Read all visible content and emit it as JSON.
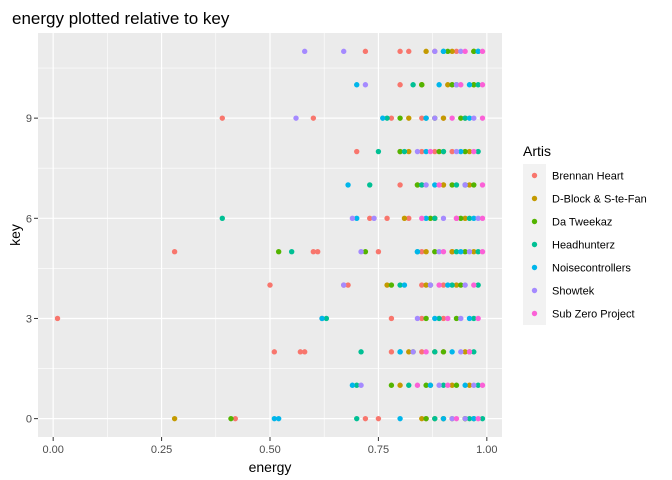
{
  "chart_data": {
    "type": "scatter",
    "title": "energy plotted relative to key",
    "xlabel": "energy",
    "ylabel": "key",
    "xlim": [
      -0.035,
      1.035
    ],
    "ylim": [
      -0.55,
      11.55
    ],
    "x_ticks": [
      0,
      0.25,
      0.5,
      0.75,
      1
    ],
    "x_tick_labels": [
      "0.00",
      "0.25",
      "0.50",
      "0.75",
      "1.00"
    ],
    "y_ticks": [
      0,
      3,
      6,
      9
    ],
    "y_tick_labels": [
      "0",
      "3",
      "6",
      "9"
    ],
    "grid": true,
    "legend_title": "Artis",
    "legend_position": "right",
    "background": "#ebebeb",
    "series": [
      {
        "name": "Brennan Heart",
        "color": "#F8766D",
        "points": [
          [
            0.42,
            0
          ],
          [
            0.72,
            0
          ],
          [
            0.75,
            0
          ],
          [
            0.86,
            0
          ],
          [
            0.9,
            0
          ],
          [
            0.51,
            2
          ],
          [
            0.57,
            2
          ],
          [
            0.58,
            2
          ],
          [
            0.78,
            2
          ],
          [
            0.85,
            2
          ],
          [
            0.9,
            2
          ],
          [
            0.01,
            3
          ],
          [
            0.62,
            3
          ],
          [
            0.78,
            3
          ],
          [
            0.85,
            3
          ],
          [
            0.9,
            3
          ],
          [
            0.5,
            4
          ],
          [
            0.67,
            4
          ],
          [
            0.68,
            4
          ],
          [
            0.85,
            4
          ],
          [
            0.9,
            4
          ],
          [
            0.28,
            5
          ],
          [
            0.6,
            5
          ],
          [
            0.61,
            5
          ],
          [
            0.75,
            5
          ],
          [
            0.85,
            5
          ],
          [
            0.92,
            5
          ],
          [
            0.73,
            6
          ],
          [
            0.77,
            6
          ],
          [
            0.82,
            6
          ],
          [
            0.88,
            6
          ],
          [
            0.93,
            6
          ],
          [
            0.8,
            7
          ],
          [
            0.85,
            7
          ],
          [
            0.9,
            7
          ],
          [
            0.95,
            7
          ],
          [
            0.7,
            8
          ],
          [
            0.8,
            8
          ],
          [
            0.85,
            8
          ],
          [
            0.88,
            8
          ],
          [
            0.92,
            8
          ],
          [
            0.39,
            9
          ],
          [
            0.6,
            9
          ],
          [
            0.78,
            9
          ],
          [
            0.85,
            9
          ],
          [
            0.9,
            9
          ],
          [
            0.8,
            10
          ],
          [
            0.85,
            10
          ],
          [
            0.92,
            10
          ],
          [
            0.72,
            11
          ],
          [
            0.8,
            11
          ],
          [
            0.82,
            11
          ],
          [
            0.88,
            11
          ],
          [
            0.93,
            11
          ]
        ]
      },
      {
        "name": "D-Block & S-te-Fan",
        "color": "#C49A00",
        "points": [
          [
            0.28,
            0
          ],
          [
            0.85,
            0
          ],
          [
            0.88,
            0
          ],
          [
            0.92,
            0
          ],
          [
            0.95,
            0
          ],
          [
            0.8,
            1
          ],
          [
            0.87,
            1
          ],
          [
            0.92,
            1
          ],
          [
            0.96,
            1
          ],
          [
            0.82,
            2
          ],
          [
            0.88,
            2
          ],
          [
            0.95,
            2
          ],
          [
            0.77,
            4
          ],
          [
            0.86,
            4
          ],
          [
            0.93,
            4
          ],
          [
            0.86,
            5
          ],
          [
            0.92,
            5
          ],
          [
            0.97,
            5
          ],
          [
            0.81,
            6
          ],
          [
            0.88,
            6
          ],
          [
            0.95,
            6
          ],
          [
            0.84,
            7
          ],
          [
            0.9,
            7
          ],
          [
            0.96,
            7
          ],
          [
            0.82,
            8
          ],
          [
            0.9,
            8
          ],
          [
            0.96,
            8
          ],
          [
            0.82,
            9
          ],
          [
            0.9,
            9
          ],
          [
            0.95,
            9
          ],
          [
            0.85,
            10
          ],
          [
            0.91,
            10
          ],
          [
            0.97,
            10
          ],
          [
            0.86,
            11
          ],
          [
            0.92,
            11
          ],
          [
            0.97,
            11
          ]
        ]
      },
      {
        "name": "Da Tweekaz",
        "color": "#53B400",
        "points": [
          [
            0.41,
            0
          ],
          [
            0.86,
            0
          ],
          [
            0.9,
            0
          ],
          [
            0.95,
            0
          ],
          [
            0.97,
            0
          ],
          [
            0.78,
            1
          ],
          [
            0.86,
            1
          ],
          [
            0.93,
            1
          ],
          [
            0.83,
            2
          ],
          [
            0.9,
            2
          ],
          [
            0.96,
            2
          ],
          [
            0.86,
            3
          ],
          [
            0.93,
            3
          ],
          [
            0.78,
            4
          ],
          [
            0.87,
            4
          ],
          [
            0.94,
            4
          ],
          [
            0.52,
            5
          ],
          [
            0.72,
            5
          ],
          [
            0.88,
            5
          ],
          [
            0.95,
            5
          ],
          [
            0.87,
            6
          ],
          [
            0.94,
            6
          ],
          [
            0.84,
            7
          ],
          [
            0.92,
            7
          ],
          [
            0.97,
            7
          ],
          [
            0.8,
            8
          ],
          [
            0.89,
            8
          ],
          [
            0.95,
            8
          ],
          [
            0.8,
            9
          ],
          [
            0.88,
            9
          ],
          [
            0.94,
            9
          ],
          [
            0.85,
            10
          ],
          [
            0.92,
            10
          ],
          [
            0.97,
            10
          ],
          [
            0.91,
            11
          ],
          [
            0.97,
            11
          ]
        ]
      },
      {
        "name": "Headhunterz",
        "color": "#00C094",
        "points": [
          [
            0.7,
            0
          ],
          [
            0.88,
            0
          ],
          [
            0.96,
            0
          ],
          [
            0.99,
            0
          ],
          [
            0.7,
            1
          ],
          [
            0.82,
            1
          ],
          [
            0.9,
            1
          ],
          [
            0.98,
            1
          ],
          [
            0.71,
            2
          ],
          [
            0.8,
            2
          ],
          [
            0.88,
            2
          ],
          [
            0.97,
            2
          ],
          [
            0.63,
            3
          ],
          [
            0.89,
            3
          ],
          [
            0.97,
            3
          ],
          [
            0.8,
            4
          ],
          [
            0.92,
            4
          ],
          [
            0.98,
            4
          ],
          [
            0.55,
            5
          ],
          [
            0.84,
            5
          ],
          [
            0.93,
            5
          ],
          [
            0.98,
            5
          ],
          [
            0.39,
            6
          ],
          [
            0.88,
            6
          ],
          [
            0.96,
            6
          ],
          [
            0.73,
            7
          ],
          [
            0.85,
            7
          ],
          [
            0.93,
            7
          ],
          [
            0.75,
            8
          ],
          [
            0.81,
            8
          ],
          [
            0.9,
            8
          ],
          [
            0.98,
            8
          ],
          [
            0.77,
            9
          ],
          [
            0.86,
            9
          ],
          [
            0.95,
            9
          ],
          [
            0.83,
            10
          ],
          [
            0.93,
            10
          ],
          [
            0.98,
            10
          ],
          [
            0.9,
            11
          ],
          [
            0.98,
            11
          ]
        ]
      },
      {
        "name": "Noisecontrollers",
        "color": "#00B6EB",
        "points": [
          [
            0.51,
            0
          ],
          [
            0.52,
            0
          ],
          [
            0.8,
            0
          ],
          [
            0.9,
            0
          ],
          [
            0.97,
            0
          ],
          [
            0.69,
            1
          ],
          [
            0.87,
            1
          ],
          [
            0.95,
            1
          ],
          [
            0.8,
            2
          ],
          [
            0.92,
            2
          ],
          [
            0.62,
            3
          ],
          [
            0.88,
            3
          ],
          [
            0.96,
            3
          ],
          [
            0.81,
            4
          ],
          [
            0.91,
            4
          ],
          [
            0.84,
            5
          ],
          [
            0.94,
            5
          ],
          [
            0.7,
            6
          ],
          [
            0.86,
            6
          ],
          [
            0.97,
            6
          ],
          [
            0.68,
            7
          ],
          [
            0.88,
            7
          ],
          [
            0.95,
            7
          ],
          [
            0.86,
            8
          ],
          [
            0.94,
            8
          ],
          [
            0.76,
            9
          ],
          [
            0.86,
            9
          ],
          [
            0.96,
            9
          ],
          [
            0.7,
            10
          ],
          [
            0.89,
            10
          ],
          [
            0.96,
            10
          ],
          [
            0.9,
            11
          ],
          [
            0.98,
            11
          ]
        ]
      },
      {
        "name": "Showtek",
        "color": "#A58AFF",
        "points": [
          [
            0.92,
            0
          ],
          [
            0.95,
            0
          ],
          [
            0.71,
            1
          ],
          [
            0.89,
            1
          ],
          [
            0.97,
            1
          ],
          [
            0.83,
            2
          ],
          [
            0.94,
            2
          ],
          [
            0.84,
            3
          ],
          [
            0.94,
            3
          ],
          [
            0.67,
            4
          ],
          [
            0.87,
            4
          ],
          [
            0.95,
            4
          ],
          [
            0.71,
            5
          ],
          [
            0.89,
            5
          ],
          [
            0.96,
            5
          ],
          [
            0.69,
            6
          ],
          [
            0.74,
            6
          ],
          [
            0.9,
            6
          ],
          [
            0.98,
            6
          ],
          [
            0.86,
            7
          ],
          [
            0.95,
            7
          ],
          [
            0.84,
            8
          ],
          [
            0.93,
            8
          ],
          [
            0.56,
            9
          ],
          [
            0.88,
            9
          ],
          [
            0.97,
            9
          ],
          [
            0.72,
            10
          ],
          [
            0.93,
            10
          ],
          [
            0.58,
            11
          ],
          [
            0.67,
            11
          ],
          [
            0.88,
            11
          ],
          [
            0.94,
            11
          ]
        ]
      },
      {
        "name": "Sub Zero Project",
        "color": "#FB61D7",
        "points": [
          [
            0.93,
            0
          ],
          [
            0.98,
            0
          ],
          [
            0.84,
            1
          ],
          [
            0.91,
            1
          ],
          [
            0.99,
            1
          ],
          [
            0.86,
            2
          ],
          [
            0.96,
            2
          ],
          [
            0.91,
            3
          ],
          [
            0.98,
            3
          ],
          [
            0.89,
            4
          ],
          [
            0.97,
            4
          ],
          [
            0.9,
            5
          ],
          [
            0.99,
            5
          ],
          [
            0.85,
            6
          ],
          [
            0.93,
            6
          ],
          [
            0.99,
            6
          ],
          [
            0.89,
            7
          ],
          [
            0.99,
            7
          ],
          [
            0.87,
            8
          ],
          [
            0.97,
            8
          ],
          [
            0.92,
            9
          ],
          [
            0.99,
            9
          ],
          [
            0.94,
            10
          ],
          [
            0.99,
            10
          ],
          [
            0.95,
            11
          ],
          [
            0.99,
            11
          ]
        ]
      }
    ]
  }
}
